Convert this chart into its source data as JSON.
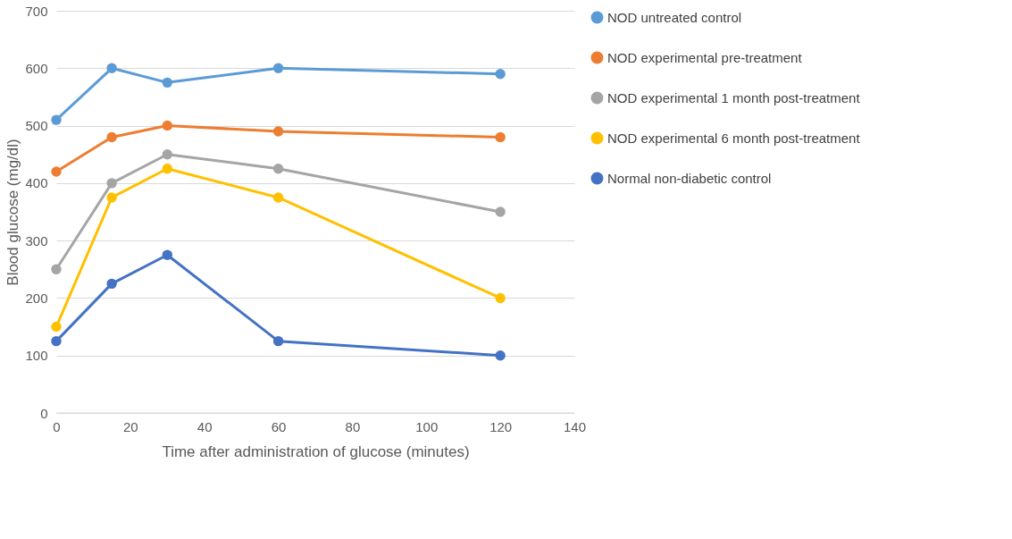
{
  "chart_data": {
    "type": "line",
    "xlabel": "Time after administration of glucose (minutes)",
    "ylabel": "Blood glucose (mg/dl)",
    "x": [
      0,
      15,
      30,
      60,
      120
    ],
    "series": [
      {
        "name": "NOD untreated control",
        "color": "#5b9bd5",
        "values": [
          510,
          600,
          575,
          600,
          590
        ]
      },
      {
        "name": "NOD experimental pre-treatment",
        "color": "#ed7d31",
        "values": [
          420,
          480,
          500,
          490,
          480
        ]
      },
      {
        "name": "NOD experimental 1 month post-treatment",
        "color": "#a5a5a5",
        "values": [
          250,
          400,
          450,
          425,
          350
        ]
      },
      {
        "name": "NOD experimental 6 month post-treatment",
        "color": "#ffc000",
        "values": [
          150,
          375,
          425,
          375,
          200
        ]
      },
      {
        "name": "Normal non-diabetic control",
        "color": "#4472c4",
        "values": [
          125,
          225,
          275,
          125,
          100
        ]
      }
    ],
    "xlim": [
      0,
      140
    ],
    "xticks": [
      0,
      20,
      40,
      60,
      80,
      100,
      120,
      140
    ],
    "ylim": [
      0,
      700
    ],
    "yticks": [
      0,
      100,
      200,
      300,
      400,
      500,
      600,
      700
    ],
    "grid": "y",
    "legend": "right",
    "marker": "circle",
    "line_style": "solid"
  }
}
